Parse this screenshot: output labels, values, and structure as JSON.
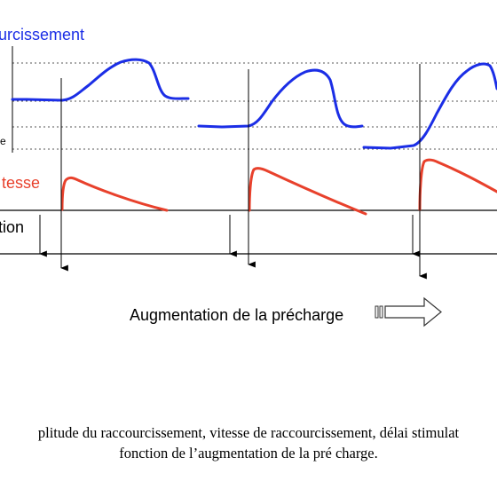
{
  "labels": {
    "raccourcissement": "urcissement",
    "e_fragment": "e",
    "vitesse": "tesse",
    "stimulation": "tion",
    "augmentation": "Augmentation  de la précharge"
  },
  "caption": {
    "line1": "plitude du raccourcissement, vitesse de raccourcissement, délai stimulat",
    "line2": "fonction de l’augmentation de la pré charge."
  },
  "colors": {
    "shortening_curve": "#1b2ee6",
    "velocity_curve": "#e8412c",
    "axis": "#000000",
    "dotted_guide": "#555555",
    "label_blue": "#1b2ee6",
    "label_red": "#e8412c"
  },
  "icons": {
    "arrow": "hollow-arrow-right-icon"
  }
}
